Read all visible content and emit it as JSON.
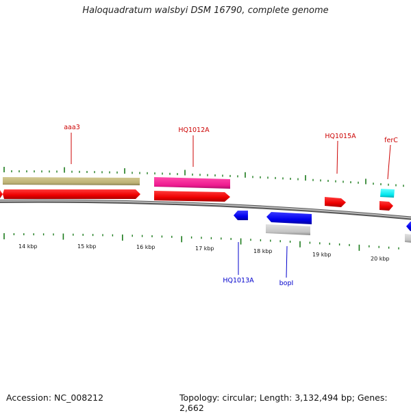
{
  "title": "Haloquadratum walsbyi DSM 16790, complete genome",
  "footer": {
    "accession": "Accession: NC_008212",
    "topology": "Topology: circular; Length: 3,132,494 bp; Genes: 2,662"
  },
  "colors": {
    "forward_label": "#cc0000",
    "reverse_label": "#0000cc",
    "tick": "#1a7a1a",
    "backbone": "#888888"
  },
  "scale_labels": [
    "14 kbp",
    "15 kbp",
    "16 kbp",
    "17 kbp",
    "18 kbp",
    "19 kbp",
    "20 kbp"
  ],
  "gene_labels": [
    {
      "id": "aaa3",
      "text": "aaa3",
      "strand": "forward"
    },
    {
      "id": "HQ1012A",
      "text": "HQ1012A",
      "strand": "forward"
    },
    {
      "id": "HQ1015A",
      "text": "HQ1015A",
      "strand": "forward"
    },
    {
      "id": "ferC",
      "text": "ferC",
      "strand": "forward"
    },
    {
      "id": "HQ1013A",
      "text": "HQ1013A",
      "strand": "reverse"
    },
    {
      "id": "bopI",
      "text": "bopI",
      "strand": "reverse"
    }
  ]
}
